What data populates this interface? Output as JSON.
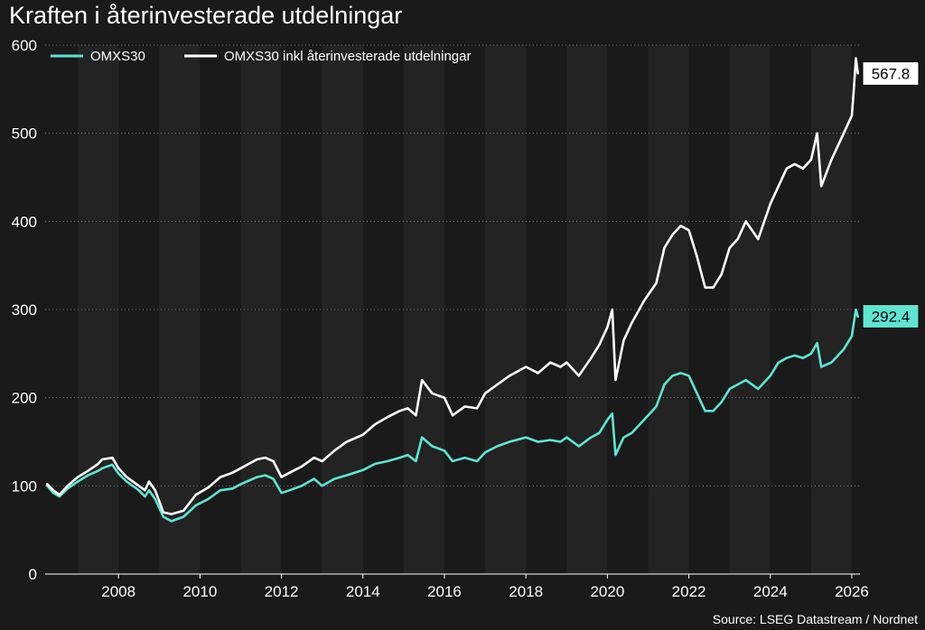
{
  "chart_data": {
    "type": "line",
    "title": "Kraften i återinvesterade utdelningar",
    "source": "Source: LSEG Datastream / Nordnet",
    "ylim": [
      0,
      600
    ],
    "xlim": [
      2006.2,
      2026.2
    ],
    "y_ticks": [
      0,
      100,
      200,
      300,
      400,
      500,
      600
    ],
    "x_ticks": [
      2008,
      2010,
      2012,
      2014,
      2016,
      2018,
      2020,
      2022,
      2024,
      2026
    ],
    "grid": "horizontal dotted",
    "legend_position": "top-left",
    "colors": {
      "background": "#1a1a1a",
      "band": "#232323",
      "omx": "#5ee6d3",
      "total": "#ffffff"
    },
    "series": [
      {
        "name": "OMXS30",
        "color": "#5ee6d3",
        "end_label": "292.4",
        "x": [
          2006.25,
          2006.4,
          2006.55,
          2006.75,
          2007.0,
          2007.25,
          2007.5,
          2007.6,
          2007.85,
          2008.0,
          2008.2,
          2008.5,
          2008.65,
          2008.75,
          2008.9,
          2009.1,
          2009.3,
          2009.6,
          2009.9,
          2010.2,
          2010.5,
          2010.8,
          2011.0,
          2011.2,
          2011.4,
          2011.6,
          2011.8,
          2012.0,
          2012.2,
          2012.5,
          2012.8,
          2013.0,
          2013.3,
          2013.6,
          2014.0,
          2014.3,
          2014.6,
          2014.9,
          2015.1,
          2015.3,
          2015.45,
          2015.7,
          2016.0,
          2016.2,
          2016.5,
          2016.8,
          2017.0,
          2017.3,
          2017.6,
          2018.0,
          2018.3,
          2018.6,
          2018.85,
          2019.0,
          2019.3,
          2019.6,
          2019.8,
          2020.0,
          2020.12,
          2020.2,
          2020.4,
          2020.6,
          2020.9,
          2021.2,
          2021.4,
          2021.6,
          2021.8,
          2022.0,
          2022.2,
          2022.4,
          2022.6,
          2022.8,
          2023.0,
          2023.2,
          2023.4,
          2023.7,
          2024.0,
          2024.2,
          2024.4,
          2024.6,
          2024.8,
          2025.0,
          2025.15,
          2025.25,
          2025.5,
          2025.8,
          2026.0,
          2026.05,
          2026.1,
          2026.15
        ],
        "values": [
          100,
          92,
          88,
          97,
          105,
          112,
          117,
          120,
          124,
          114,
          105,
          95,
          88,
          95,
          85,
          65,
          60,
          65,
          78,
          85,
          95,
          97,
          102,
          106,
          110,
          112,
          108,
          92,
          95,
          100,
          108,
          100,
          108,
          112,
          118,
          125,
          128,
          132,
          135,
          128,
          155,
          145,
          140,
          128,
          132,
          128,
          138,
          145,
          150,
          155,
          150,
          152,
          150,
          155,
          145,
          155,
          160,
          175,
          182,
          135,
          155,
          160,
          175,
          190,
          215,
          225,
          228,
          225,
          205,
          185,
          185,
          195,
          210,
          215,
          220,
          210,
          225,
          240,
          245,
          248,
          245,
          250,
          262,
          235,
          240,
          255,
          270,
          285,
          300,
          292
        ]
      },
      {
        "name": "OMXS30 inkl återinvesterade utdelningar",
        "color": "#ffffff",
        "end_label": "567.8",
        "x": [
          2006.25,
          2006.4,
          2006.55,
          2006.75,
          2007.0,
          2007.25,
          2007.5,
          2007.6,
          2007.85,
          2008.0,
          2008.2,
          2008.5,
          2008.65,
          2008.75,
          2008.9,
          2009.1,
          2009.3,
          2009.6,
          2009.9,
          2010.2,
          2010.5,
          2010.8,
          2011.0,
          2011.2,
          2011.4,
          2011.6,
          2011.8,
          2012.0,
          2012.2,
          2012.5,
          2012.8,
          2013.0,
          2013.3,
          2013.6,
          2014.0,
          2014.3,
          2014.6,
          2014.9,
          2015.1,
          2015.3,
          2015.45,
          2015.7,
          2016.0,
          2016.2,
          2016.5,
          2016.8,
          2017.0,
          2017.3,
          2017.6,
          2018.0,
          2018.3,
          2018.6,
          2018.85,
          2019.0,
          2019.3,
          2019.6,
          2019.8,
          2020.0,
          2020.12,
          2020.2,
          2020.4,
          2020.6,
          2020.9,
          2021.2,
          2021.4,
          2021.6,
          2021.8,
          2022.0,
          2022.2,
          2022.4,
          2022.6,
          2022.8,
          2023.0,
          2023.2,
          2023.4,
          2023.7,
          2024.0,
          2024.2,
          2024.4,
          2024.6,
          2024.8,
          2025.0,
          2025.15,
          2025.25,
          2025.5,
          2025.8,
          2026.0,
          2026.05,
          2026.1,
          2026.15
        ],
        "values": [
          102,
          95,
          90,
          100,
          110,
          117,
          125,
          130,
          132,
          120,
          110,
          100,
          95,
          105,
          95,
          70,
          68,
          72,
          90,
          98,
          110,
          115,
          120,
          125,
          130,
          132,
          128,
          110,
          115,
          122,
          132,
          128,
          140,
          150,
          158,
          170,
          178,
          185,
          188,
          180,
          220,
          205,
          200,
          180,
          190,
          188,
          205,
          215,
          225,
          235,
          228,
          240,
          235,
          240,
          225,
          245,
          260,
          280,
          300,
          220,
          265,
          285,
          310,
          330,
          370,
          385,
          395,
          390,
          360,
          325,
          325,
          340,
          370,
          380,
          400,
          380,
          420,
          440,
          460,
          465,
          460,
          470,
          500,
          440,
          470,
          500,
          520,
          550,
          585,
          568
        ]
      }
    ]
  }
}
